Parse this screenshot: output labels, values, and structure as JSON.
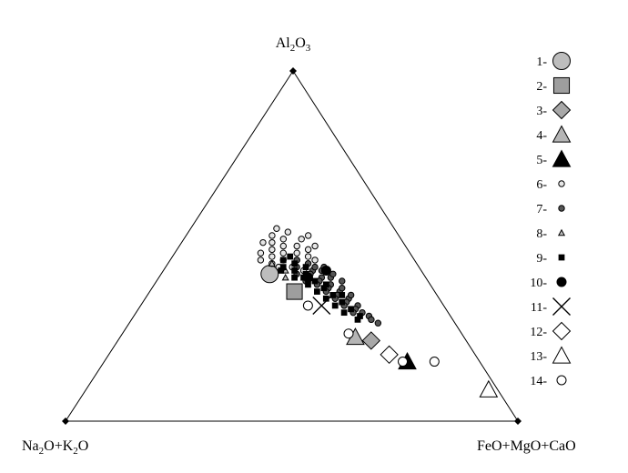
{
  "chart_data": {
    "type": "scatter",
    "subtype": "ternary",
    "vertices": {
      "top": {
        "base": "Al",
        "sub1": "2",
        "mid": "O",
        "sub2": "3"
      },
      "left": {
        "base": "Na",
        "sub1": "2",
        "mid": "O+K",
        "sub2": "2",
        "tail": "O"
      },
      "right": {
        "label": "FeO+MgO+CaO"
      }
    },
    "legend": {
      "placement": "right",
      "items": [
        {
          "label": "1-",
          "marker": "circle",
          "fill": "#bdbdbd",
          "size": "large"
        },
        {
          "label": "2-",
          "marker": "square",
          "fill": "#9e9e9e",
          "size": "large"
        },
        {
          "label": "3-",
          "marker": "diamond",
          "fill": "#a8a8a8",
          "size": "large"
        },
        {
          "label": "4-",
          "marker": "triangle",
          "fill": "#b5b5b5",
          "size": "large"
        },
        {
          "label": "5-",
          "marker": "triangle",
          "fill": "#000000",
          "size": "large"
        },
        {
          "label": "6-",
          "marker": "circle",
          "fill": "#e6e6e6",
          "size": "small"
        },
        {
          "label": "7-",
          "marker": "circle",
          "fill": "#555555",
          "size": "small"
        },
        {
          "label": "8-",
          "marker": "triangle",
          "fill": "#bdbdbd",
          "size": "small"
        },
        {
          "label": "9-",
          "marker": "square",
          "fill": "#000000",
          "size": "small"
        },
        {
          "label": "10-",
          "marker": "circle",
          "fill": "#000000",
          "size": "medium"
        },
        {
          "label": "11-",
          "marker": "cross",
          "fill": "#000000",
          "size": "large"
        },
        {
          "label": "12-",
          "marker": "diamond",
          "fill": "#ffffff",
          "size": "large"
        },
        {
          "label": "13-",
          "marker": "triangle",
          "fill": "#ffffff",
          "size": "large"
        },
        {
          "label": "14-",
          "marker": "circle",
          "fill": "#ffffff",
          "size": "medium"
        }
      ]
    },
    "components": [
      "Al2O3",
      "Na2O+K2O",
      "FeO+MgO+CaO"
    ],
    "series": [
      {
        "group": "1-",
        "points": [
          [
            0.42,
            0.34,
            0.24
          ]
        ]
      },
      {
        "group": "2-",
        "points": [
          [
            0.37,
            0.31,
            0.32
          ]
        ]
      },
      {
        "group": "3-",
        "points": [
          [
            0.23,
            0.21,
            0.56
          ]
        ]
      },
      {
        "group": "4-",
        "points": [
          [
            0.24,
            0.24,
            0.52
          ]
        ]
      },
      {
        "group": "5-",
        "points": [
          [
            0.17,
            0.16,
            0.67
          ]
        ]
      },
      {
        "group": "6-",
        "points": [
          [
            0.55,
            0.26,
            0.19
          ],
          [
            0.53,
            0.28,
            0.19
          ],
          [
            0.52,
            0.26,
            0.22
          ],
          [
            0.51,
            0.29,
            0.2
          ],
          [
            0.5,
            0.27,
            0.23
          ],
          [
            0.49,
            0.3,
            0.21
          ],
          [
            0.48,
            0.28,
            0.24
          ],
          [
            0.47,
            0.31,
            0.22
          ],
          [
            0.46,
            0.29,
            0.25
          ],
          [
            0.45,
            0.32,
            0.23
          ],
          [
            0.54,
            0.24,
            0.22
          ],
          [
            0.52,
            0.22,
            0.26
          ],
          [
            0.5,
            0.24,
            0.26
          ],
          [
            0.48,
            0.25,
            0.27
          ],
          [
            0.49,
            0.22,
            0.29
          ],
          [
            0.47,
            0.23,
            0.3
          ],
          [
            0.46,
            0.26,
            0.28
          ],
          [
            0.44,
            0.28,
            0.28
          ],
          [
            0.51,
            0.31,
            0.18
          ],
          [
            0.53,
            0.2,
            0.27
          ],
          [
            0.5,
            0.2,
            0.3
          ],
          [
            0.46,
            0.22,
            0.32
          ],
          [
            0.43,
            0.26,
            0.31
          ],
          [
            0.48,
            0.33,
            0.19
          ],
          [
            0.44,
            0.31,
            0.25
          ],
          [
            0.46,
            0.34,
            0.2
          ]
        ]
      },
      {
        "group": "7-",
        "points": [
          [
            0.46,
            0.26,
            0.28
          ],
          [
            0.44,
            0.27,
            0.29
          ],
          [
            0.43,
            0.24,
            0.33
          ],
          [
            0.42,
            0.25,
            0.33
          ],
          [
            0.41,
            0.23,
            0.36
          ],
          [
            0.4,
            0.24,
            0.36
          ],
          [
            0.39,
            0.22,
            0.39
          ],
          [
            0.38,
            0.23,
            0.39
          ],
          [
            0.37,
            0.21,
            0.42
          ],
          [
            0.36,
            0.22,
            0.42
          ],
          [
            0.35,
            0.2,
            0.45
          ],
          [
            0.34,
            0.21,
            0.45
          ],
          [
            0.33,
            0.19,
            0.48
          ],
          [
            0.32,
            0.2,
            0.48
          ],
          [
            0.31,
            0.19,
            0.5
          ],
          [
            0.3,
            0.18,
            0.52
          ],
          [
            0.29,
            0.18,
            0.53
          ],
          [
            0.28,
            0.17,
            0.55
          ],
          [
            0.45,
            0.24,
            0.31
          ],
          [
            0.43,
            0.22,
            0.35
          ],
          [
            0.41,
            0.21,
            0.38
          ],
          [
            0.4,
            0.27,
            0.33
          ],
          [
            0.42,
            0.28,
            0.3
          ],
          [
            0.38,
            0.2,
            0.42
          ],
          [
            0.36,
            0.19,
            0.45
          ],
          [
            0.39,
            0.25,
            0.36
          ],
          [
            0.44,
            0.21,
            0.35
          ],
          [
            0.37,
            0.24,
            0.39
          ],
          [
            0.35,
            0.23,
            0.42
          ],
          [
            0.4,
            0.19,
            0.41
          ],
          [
            0.33,
            0.22,
            0.45
          ],
          [
            0.31,
            0.21,
            0.48
          ],
          [
            0.42,
            0.2,
            0.38
          ],
          [
            0.44,
            0.23,
            0.33
          ]
        ]
      },
      {
        "group": "8-",
        "points": [
          [
            0.45,
            0.32,
            0.23
          ],
          [
            0.41,
            0.31,
            0.28
          ],
          [
            0.43,
            0.3,
            0.27
          ]
        ]
      },
      {
        "group": "9-",
        "points": [
          [
            0.46,
            0.29,
            0.25
          ],
          [
            0.45,
            0.27,
            0.28
          ],
          [
            0.44,
            0.3,
            0.26
          ],
          [
            0.43,
            0.28,
            0.29
          ],
          [
            0.42,
            0.26,
            0.32
          ],
          [
            0.41,
            0.29,
            0.3
          ],
          [
            0.4,
            0.25,
            0.35
          ],
          [
            0.39,
            0.27,
            0.34
          ],
          [
            0.38,
            0.24,
            0.38
          ],
          [
            0.37,
            0.26,
            0.37
          ],
          [
            0.36,
            0.23,
            0.41
          ],
          [
            0.35,
            0.25,
            0.4
          ],
          [
            0.34,
            0.22,
            0.44
          ],
          [
            0.33,
            0.24,
            0.43
          ],
          [
            0.32,
            0.21,
            0.47
          ],
          [
            0.31,
            0.23,
            0.46
          ],
          [
            0.3,
            0.2,
            0.5
          ],
          [
            0.29,
            0.21,
            0.5
          ],
          [
            0.47,
            0.27,
            0.26
          ],
          [
            0.44,
            0.25,
            0.31
          ],
          [
            0.43,
            0.31,
            0.26
          ],
          [
            0.41,
            0.27,
            0.32
          ],
          [
            0.39,
            0.23,
            0.38
          ],
          [
            0.36,
            0.21,
            0.43
          ]
        ]
      },
      {
        "group": "10-",
        "points": [
          [
            0.43,
            0.21,
            0.36
          ],
          [
            0.41,
            0.26,
            0.33
          ]
        ]
      },
      {
        "group": "11-",
        "points": [
          [
            0.33,
            0.27,
            0.4
          ]
        ]
      },
      {
        "group": "12-",
        "points": [
          [
            0.19,
            0.19,
            0.62
          ]
        ]
      },
      {
        "group": "13-",
        "points": [
          [
            0.09,
            0.02,
            0.89
          ]
        ]
      },
      {
        "group": "14-",
        "points": [
          [
            0.33,
            0.3,
            0.37
          ],
          [
            0.25,
            0.25,
            0.5
          ],
          [
            0.17,
            0.17,
            0.66
          ],
          [
            0.17,
            0.1,
            0.73
          ]
        ]
      }
    ]
  }
}
